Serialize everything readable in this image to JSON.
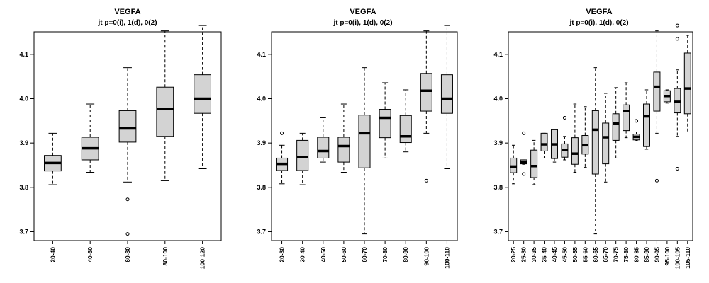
{
  "chart_data": [
    {
      "type": "boxplot",
      "title": "VEGFA",
      "subtitle": "jt p=0(i), 1(d), 0(2)",
      "xlabel": "",
      "ylabel": "",
      "ylim": [
        3.68,
        4.17
      ],
      "yticks": [
        "3.7",
        "3.8",
        "3.9",
        "4.0",
        "4.1"
      ],
      "categories": [
        "20-40",
        "40-60",
        "60-80",
        "80-100",
        "100-120"
      ],
      "boxes": [
        {
          "low": 3.806,
          "q1": 3.837,
          "median": 3.855,
          "q3": 3.872,
          "high": 3.922,
          "outliers": []
        },
        {
          "low": 3.834,
          "q1": 3.862,
          "median": 3.888,
          "q3": 3.913,
          "high": 3.988,
          "outliers": []
        },
        {
          "low": 3.812,
          "q1": 3.902,
          "median": 3.933,
          "q3": 3.973,
          "high": 4.07,
          "outliers": [
            3.773,
            3.695
          ]
        },
        {
          "low": 3.815,
          "q1": 3.915,
          "median": 3.977,
          "q3": 4.026,
          "high": 4.153,
          "outliers": []
        },
        {
          "low": 3.842,
          "q1": 3.967,
          "median": 4.0,
          "q3": 4.054,
          "high": 4.165,
          "outliers": []
        }
      ],
      "grid": false
    },
    {
      "type": "boxplot",
      "title": "VEGFA",
      "subtitle": "jt p=0(i), 1(d), 0(2)",
      "xlabel": "",
      "ylabel": "",
      "ylim": [
        3.68,
        4.17
      ],
      "yticks": [
        "3.7",
        "3.8",
        "3.9",
        "4.0",
        "4.1"
      ],
      "categories": [
        "20-30",
        "30-40",
        "40-50",
        "50-60",
        "60-70",
        "70-80",
        "80-90",
        "90-100",
        "100-110"
      ],
      "boxes": [
        {
          "low": 3.808,
          "q1": 3.838,
          "median": 3.853,
          "q3": 3.866,
          "high": 3.895,
          "outliers": [
            3.922
          ]
        },
        {
          "low": 3.806,
          "q1": 3.838,
          "median": 3.868,
          "q3": 3.906,
          "high": 3.922,
          "outliers": []
        },
        {
          "low": 3.857,
          "q1": 3.866,
          "median": 3.882,
          "q3": 3.913,
          "high": 3.957,
          "outliers": []
        },
        {
          "low": 3.834,
          "q1": 3.857,
          "median": 3.893,
          "q3": 3.913,
          "high": 3.988,
          "outliers": []
        },
        {
          "low": 3.695,
          "q1": 3.844,
          "median": 3.922,
          "q3": 3.963,
          "high": 4.07,
          "outliers": []
        },
        {
          "low": 3.866,
          "q1": 3.912,
          "median": 3.957,
          "q3": 3.976,
          "high": 4.036,
          "outliers": []
        },
        {
          "low": 3.88,
          "q1": 3.901,
          "median": 3.915,
          "q3": 3.962,
          "high": 4.02,
          "outliers": []
        },
        {
          "low": 3.922,
          "q1": 3.972,
          "median": 4.018,
          "q3": 4.057,
          "high": 4.153,
          "outliers": [
            3.815
          ]
        },
        {
          "low": 3.842,
          "q1": 3.967,
          "median": 4.0,
          "q3": 4.054,
          "high": 4.165,
          "outliers": []
        }
      ],
      "grid": false
    },
    {
      "type": "boxplot",
      "title": "VEGFA",
      "subtitle": "jt p=0(i), 1(d), 0(2)",
      "xlabel": "",
      "ylabel": "",
      "ylim": [
        3.68,
        4.17
      ],
      "yticks": [
        "3.7",
        "3.8",
        "3.9",
        "4.0",
        "4.1"
      ],
      "categories": [
        "20-25",
        "25-30",
        "30-35",
        "35-40",
        "40-45",
        "45-50",
        "50-55",
        "55-60",
        "60-65",
        "65-70",
        "70-75",
        "75-80",
        "80-85",
        "85-90",
        "90-95",
        "95-100",
        "100-105",
        "105-110"
      ],
      "boxes": [
        {
          "low": 3.808,
          "q1": 3.833,
          "median": 3.847,
          "q3": 3.866,
          "high": 3.895,
          "outliers": []
        },
        {
          "low": 3.852,
          "q1": 3.853,
          "median": 3.856,
          "q3": 3.862,
          "high": 3.862,
          "outliers": [
            3.922,
            3.83
          ]
        },
        {
          "low": 3.806,
          "q1": 3.822,
          "median": 3.848,
          "q3": 3.884,
          "high": 3.906,
          "outliers": []
        },
        {
          "low": 3.866,
          "q1": 3.882,
          "median": 3.897,
          "q3": 3.922,
          "high": 3.922,
          "outliers": []
        },
        {
          "low": 3.857,
          "q1": 3.865,
          "median": 3.897,
          "q3": 3.93,
          "high": 3.93,
          "outliers": []
        },
        {
          "low": 3.862,
          "q1": 3.868,
          "median": 3.884,
          "q3": 3.898,
          "high": 3.915,
          "outliers": [
            3.957
          ]
        },
        {
          "low": 3.834,
          "q1": 3.852,
          "median": 3.876,
          "q3": 3.912,
          "high": 3.988,
          "outliers": []
        },
        {
          "low": 3.845,
          "q1": 3.875,
          "median": 3.895,
          "q3": 3.917,
          "high": 3.982,
          "outliers": []
        },
        {
          "low": 3.695,
          "q1": 3.83,
          "median": 3.93,
          "q3": 3.973,
          "high": 4.07,
          "outliers": []
        },
        {
          "low": 3.812,
          "q1": 3.853,
          "median": 3.913,
          "q3": 3.945,
          "high": 4.012,
          "outliers": []
        },
        {
          "low": 3.866,
          "q1": 3.906,
          "median": 3.944,
          "q3": 3.966,
          "high": 4.025,
          "outliers": []
        },
        {
          "low": 3.912,
          "q1": 3.928,
          "median": 3.972,
          "q3": 3.986,
          "high": 4.036,
          "outliers": []
        },
        {
          "low": 3.905,
          "q1": 3.907,
          "median": 3.914,
          "q3": 3.92,
          "high": 3.925,
          "outliers": [
            3.95
          ]
        },
        {
          "low": 3.886,
          "q1": 3.892,
          "median": 3.96,
          "q3": 3.988,
          "high": 4.02,
          "outliers": []
        },
        {
          "low": 3.922,
          "q1": 3.972,
          "median": 4.027,
          "q3": 4.06,
          "high": 4.153,
          "outliers": [
            3.815
          ]
        },
        {
          "low": 3.99,
          "q1": 3.993,
          "median": 4.006,
          "q3": 4.018,
          "high": 4.02,
          "outliers": []
        },
        {
          "low": 3.915,
          "q1": 3.968,
          "median": 3.993,
          "q3": 4.023,
          "high": 4.065,
          "outliers": [
            4.165,
            4.135,
            3.842
          ]
        },
        {
          "low": 3.925,
          "q1": 3.966,
          "median": 4.023,
          "q3": 4.103,
          "high": 4.143,
          "outliers": []
        }
      ],
      "grid": false
    }
  ]
}
